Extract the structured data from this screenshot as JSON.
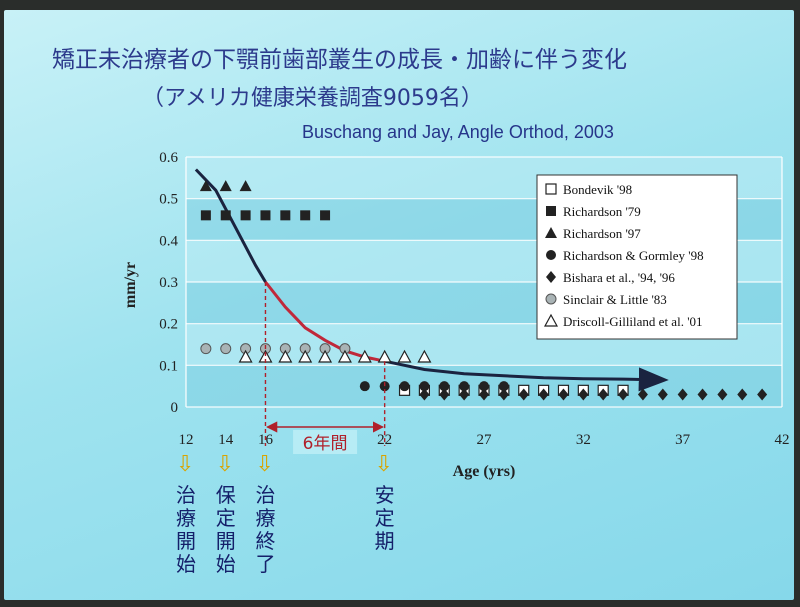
{
  "title_line1": "矯正未治療者の下顎前歯部叢生の成長・加齢に伴う変化",
  "title_line2": "（アメリカ健康栄養調査9059名）",
  "source": "Buschang and Jay, Angle Orthod, 2003",
  "colors": {
    "text_blue": "#2c3a8c",
    "curve_dark": "#1a2340",
    "curve_red": "#c0283a",
    "arrow_yellow": "#d9a400",
    "interval_red": "#b0202a"
  },
  "stage_labels": [
    {
      "age": 12.0,
      "text": "治療開始"
    },
    {
      "age": 14.0,
      "text": "保定開始"
    },
    {
      "age": 16.0,
      "text": "治療終了"
    },
    {
      "age": 22.0,
      "text": "安定期"
    }
  ],
  "chart_data": {
    "type": "scatter",
    "xlabel": "Age (yrs)",
    "ylabel": "mm/yr",
    "xlim": [
      12,
      42
    ],
    "ylim": [
      0,
      0.6
    ],
    "x_ticks": [
      "12",
      "14",
      "16",
      "22",
      "27",
      "32",
      "37",
      "42"
    ],
    "x_tick_values": [
      12,
      14,
      16,
      22,
      27,
      32,
      37,
      42
    ],
    "y_ticks": [
      "0",
      "0.1",
      "0.2",
      "0.3",
      "0.4",
      "0.5",
      "0.6"
    ],
    "y_tick_values": [
      0,
      0.1,
      0.2,
      0.3,
      0.4,
      0.5,
      0.6
    ],
    "grid": true,
    "legend_position": "top-right",
    "interval_annotation": {
      "from": 16,
      "to": 22,
      "label": "6年間"
    },
    "series": [
      {
        "name": "Bondevik '98",
        "marker": "open-square",
        "x": [
          23,
          24,
          25,
          26,
          27,
          28,
          29,
          30,
          31,
          32,
          33,
          34
        ],
        "y": [
          0.04,
          0.04,
          0.04,
          0.04,
          0.04,
          0.04,
          0.04,
          0.04,
          0.04,
          0.04,
          0.04,
          0.04
        ]
      },
      {
        "name": "Richardson '79",
        "marker": "filled-square",
        "x": [
          13,
          14,
          15,
          16,
          17,
          18,
          19
        ],
        "y": [
          0.46,
          0.46,
          0.46,
          0.46,
          0.46,
          0.46,
          0.46
        ]
      },
      {
        "name": "Richardson '97",
        "marker": "filled-triangle",
        "x": [
          13,
          14,
          15
        ],
        "y": [
          0.53,
          0.53,
          0.53
        ]
      },
      {
        "name": "Richardson & Gormley '98",
        "marker": "filled-circle",
        "x": [
          21,
          22,
          23,
          24,
          25,
          26,
          27,
          28
        ],
        "y": [
          0.05,
          0.05,
          0.05,
          0.05,
          0.05,
          0.05,
          0.05,
          0.05
        ]
      },
      {
        "name": "Bishara et al., '94, '96",
        "marker": "filled-diamond",
        "x": [
          24,
          25,
          26,
          27,
          28,
          29,
          30,
          31,
          32,
          33,
          34,
          35,
          36,
          37,
          38,
          39,
          40,
          41
        ],
        "y": [
          0.03,
          0.03,
          0.03,
          0.03,
          0.03,
          0.03,
          0.03,
          0.03,
          0.03,
          0.03,
          0.03,
          0.03,
          0.03,
          0.03,
          0.03,
          0.03,
          0.03,
          0.03
        ]
      },
      {
        "name": "Sinclair & Little '83",
        "marker": "filled-grey-circle",
        "x": [
          13,
          14,
          15,
          16,
          17,
          18,
          19,
          20
        ],
        "y": [
          0.14,
          0.14,
          0.14,
          0.14,
          0.14,
          0.14,
          0.14,
          0.14
        ]
      },
      {
        "name": "Driscoll-Gilliland et al. '01",
        "marker": "open-triangle",
        "x": [
          15,
          16,
          17,
          18,
          19,
          20,
          21,
          22,
          23,
          24
        ],
        "y": [
          0.12,
          0.12,
          0.12,
          0.12,
          0.12,
          0.12,
          0.12,
          0.12,
          0.12,
          0.12
        ]
      }
    ],
    "trend_curve": {
      "x": [
        12.5,
        13.5,
        14.5,
        15.5,
        16.0,
        17,
        18,
        19,
        20,
        21,
        22,
        24,
        26,
        28,
        30,
        32,
        34,
        36
      ],
      "y": [
        0.57,
        0.52,
        0.43,
        0.34,
        0.3,
        0.24,
        0.19,
        0.16,
        0.135,
        0.12,
        0.11,
        0.09,
        0.08,
        0.075,
        0.07,
        0.068,
        0.067,
        0.065
      ],
      "highlight_range": [
        16,
        22
      ]
    }
  }
}
